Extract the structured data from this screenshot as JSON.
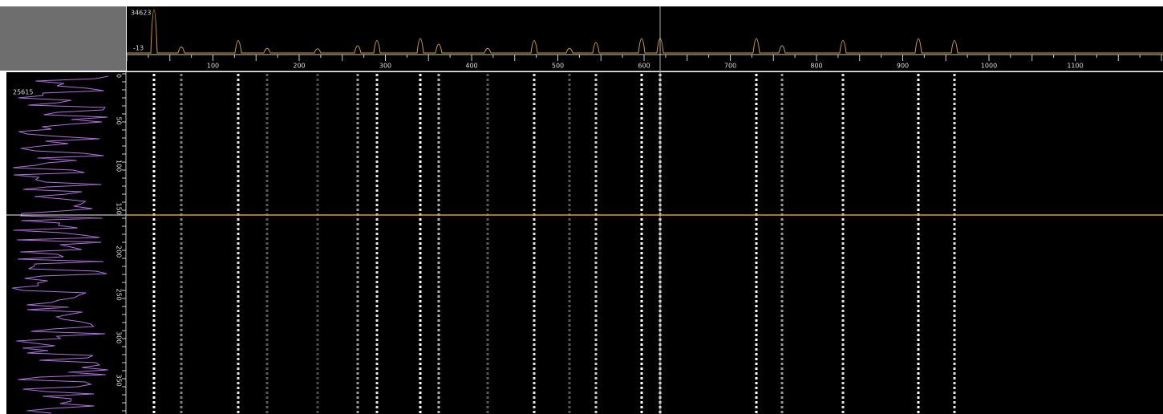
{
  "spectrum": {
    "max_label": "34623",
    "min_label": "-13",
    "x_ticks": [
      100,
      200,
      300,
      400,
      500,
      600,
      700,
      800,
      900,
      1000,
      1100
    ]
  },
  "profile": {
    "max_label": "25615",
    "y_ticks": [
      0,
      50,
      100,
      150,
      200,
      250,
      300,
      350
    ]
  }
}
